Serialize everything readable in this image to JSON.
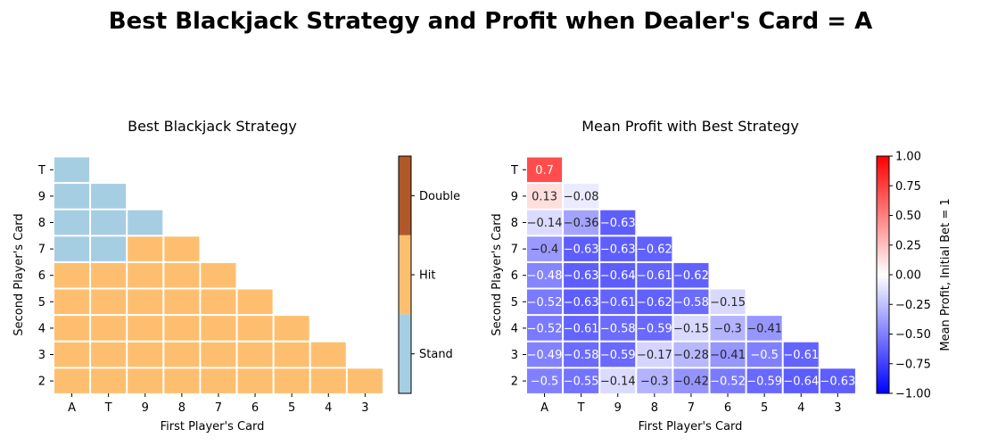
{
  "title": "Best Blackjack Strategy and Profit when Dealer's Card = A",
  "chart_data": [
    {
      "type": "heatmap",
      "title": "Best Blackjack Strategy",
      "xlabel": "First Player's Card",
      "ylabel": "Second Player's Card",
      "x_categories": [
        "A",
        "T",
        "9",
        "8",
        "7",
        "6",
        "5",
        "4",
        "3"
      ],
      "y_categories": [
        "T",
        "9",
        "8",
        "7",
        "6",
        "5",
        "4",
        "3",
        "2"
      ],
      "legend": {
        "position": "right",
        "levels": [
          "Stand",
          "Hit",
          "Double"
        ],
        "colors": {
          "Stand": "#a6cee3",
          "Hit": "#fdbf6f",
          "Double": "#b15928"
        }
      },
      "cells": [
        [
          "Stand",
          null,
          null,
          null,
          null,
          null,
          null,
          null,
          null
        ],
        [
          "Stand",
          "Stand",
          null,
          null,
          null,
          null,
          null,
          null,
          null
        ],
        [
          "Stand",
          "Stand",
          "Stand",
          null,
          null,
          null,
          null,
          null,
          null
        ],
        [
          "Stand",
          "Stand",
          "Hit",
          "Hit",
          null,
          null,
          null,
          null,
          null
        ],
        [
          "Hit",
          "Hit",
          "Hit",
          "Hit",
          "Hit",
          null,
          null,
          null,
          null
        ],
        [
          "Hit",
          "Hit",
          "Hit",
          "Hit",
          "Hit",
          "Hit",
          null,
          null,
          null
        ],
        [
          "Hit",
          "Hit",
          "Hit",
          "Hit",
          "Hit",
          "Hit",
          "Hit",
          null,
          null
        ],
        [
          "Hit",
          "Hit",
          "Hit",
          "Hit",
          "Hit",
          "Hit",
          "Hit",
          "Hit",
          null
        ],
        [
          "Hit",
          "Hit",
          "Hit",
          "Hit",
          "Hit",
          "Hit",
          "Hit",
          "Hit",
          "Hit"
        ]
      ]
    },
    {
      "type": "heatmap",
      "title": "Mean Profit with Best Strategy",
      "xlabel": "First Player's Card",
      "ylabel": "Second Player's Card",
      "x_categories": [
        "A",
        "T",
        "9",
        "8",
        "7",
        "6",
        "5",
        "4",
        "3"
      ],
      "y_categories": [
        "T",
        "9",
        "8",
        "7",
        "6",
        "5",
        "4",
        "3",
        "2"
      ],
      "colorbar": {
        "label": "Mean Profit, Initial Bet = 1",
        "range": [
          -1.0,
          1.0
        ],
        "ticks": [
          "1.00",
          "0.75",
          "0.50",
          "0.25",
          "0.00",
          "−0.25",
          "−0.50",
          "−0.75",
          "−1.00"
        ],
        "colormap": "bwr",
        "position": "right"
      },
      "values": [
        [
          0.7,
          null,
          null,
          null,
          null,
          null,
          null,
          null,
          null
        ],
        [
          0.13,
          -0.08,
          null,
          null,
          null,
          null,
          null,
          null,
          null
        ],
        [
          -0.14,
          -0.36,
          -0.63,
          null,
          null,
          null,
          null,
          null,
          null
        ],
        [
          -0.4,
          -0.63,
          -0.63,
          -0.62,
          null,
          null,
          null,
          null,
          null
        ],
        [
          -0.48,
          -0.63,
          -0.64,
          -0.61,
          -0.62,
          null,
          null,
          null,
          null
        ],
        [
          -0.52,
          -0.63,
          -0.61,
          -0.62,
          -0.58,
          -0.15,
          null,
          null,
          null
        ],
        [
          -0.52,
          -0.61,
          -0.58,
          -0.59,
          -0.15,
          -0.3,
          -0.41,
          null,
          null
        ],
        [
          -0.49,
          -0.58,
          -0.59,
          -0.17,
          -0.28,
          -0.41,
          -0.5,
          -0.61,
          null
        ],
        [
          -0.5,
          -0.55,
          -0.14,
          -0.3,
          -0.42,
          -0.52,
          -0.59,
          -0.64,
          -0.63
        ]
      ]
    }
  ]
}
